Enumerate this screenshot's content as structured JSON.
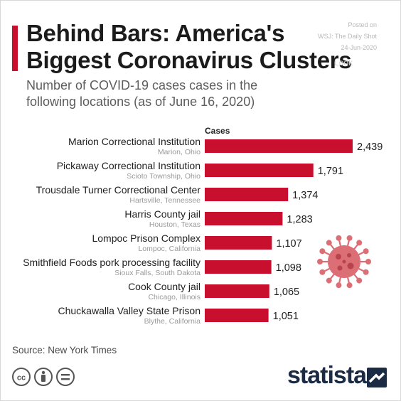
{
  "header": {
    "title_line1": "Behind Bars: America's",
    "title_line2": "Biggest Coronavirus Clusters",
    "subtitle_line1": "Number of COVID-19 cases cases in the",
    "subtitle_line2": "following locations (as of June 16, 2020)"
  },
  "posted": {
    "line1": "Posted on",
    "line2": "WSJ: The Daily Shot",
    "line3": "24-Jun-2020"
  },
  "watermark": "Look",
  "footer": {
    "source": "Source: New York Times",
    "brand": "statista"
  },
  "colors": {
    "accent": "#c8102e",
    "bar": "#c8102e",
    "brand": "#1b2b44"
  },
  "chart_data": {
    "type": "bar",
    "orientation": "horizontal",
    "value_header": "Cases",
    "categories": [
      "Marion Correctional Institution",
      "Pickaway Correctional Institution",
      "Trousdale Turner Correctional Center",
      "Harris County jail",
      "Lompoc Prison Complex",
      "Smithfield Foods pork processing facility",
      "Cook County jail",
      "Chuckawalla Valley State Prison"
    ],
    "locations": [
      "Marion, Ohio",
      "Scioto Township, Ohio",
      "Hartsville, Tennessee",
      "Houston, Texas",
      "Lompoc, California",
      "Sioux Falls, South Dakota",
      "Chicago, Illinois",
      "Blythe, California"
    ],
    "values": [
      2439,
      1791,
      1374,
      1283,
      1107,
      1098,
      1065,
      1051
    ],
    "value_labels": [
      "2,439",
      "1,791",
      "1,374",
      "1,283",
      "1,107",
      "1,098",
      "1,065",
      "1,051"
    ],
    "xlim": [
      0,
      2439
    ],
    "grid": false,
    "legend": "none"
  }
}
